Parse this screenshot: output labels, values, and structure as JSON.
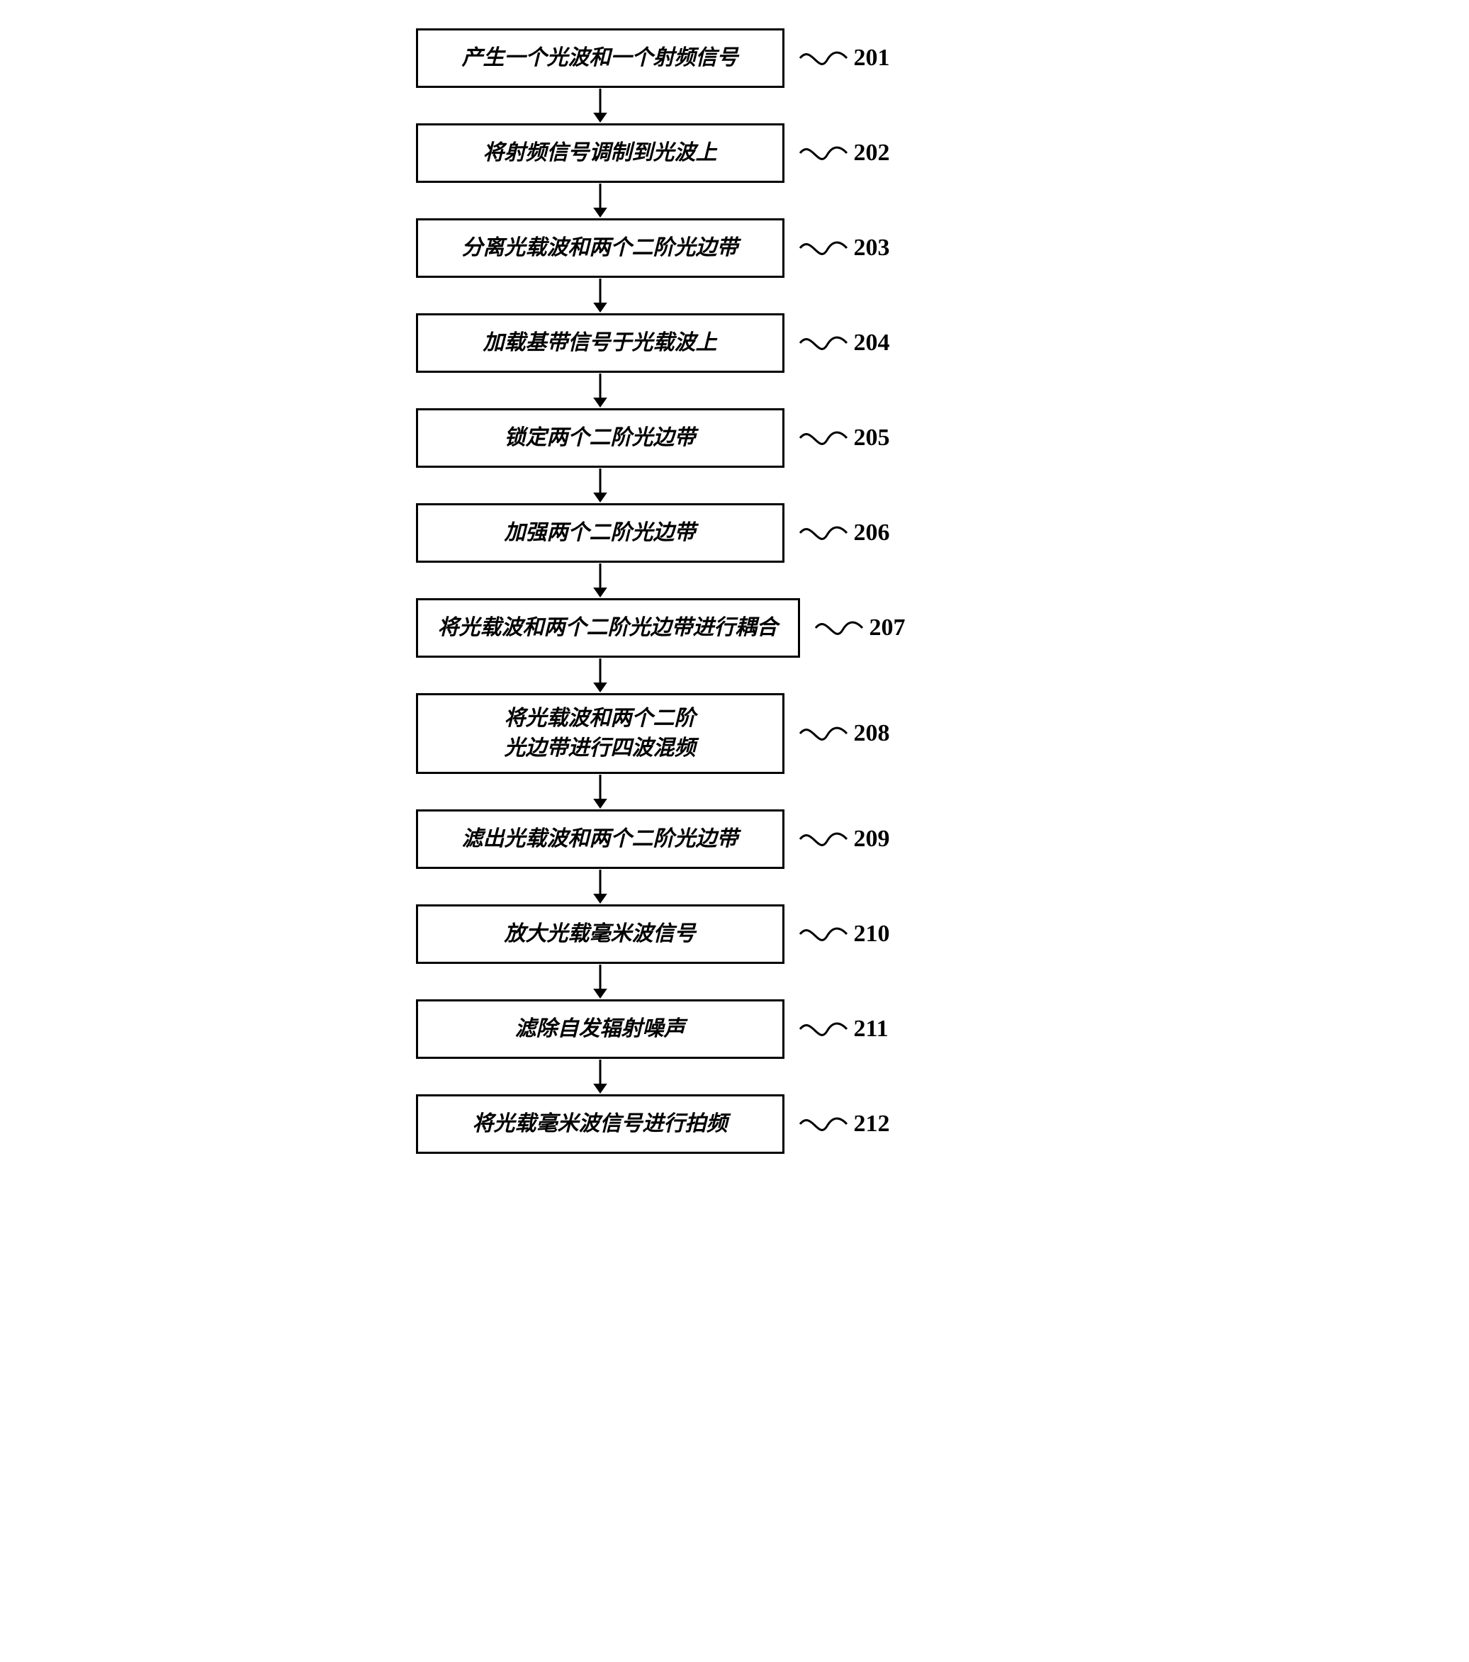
{
  "flowchart": {
    "background_color": "#ffffff",
    "box_border_color": "#000000",
    "box_border_width": 3,
    "text_color": "#000000",
    "box_font_size": 30,
    "label_font_size": 34,
    "font_family": "SimSun, serif",
    "font_style": "italic",
    "font_weight": "bold",
    "arrow_color": "#000000",
    "arrow_stroke_width": 3,
    "arrow_head_size": 14,
    "curve_stroke_width": 3,
    "box_min_width": 520,
    "arrow_height": 48,
    "steps": [
      {
        "number": "201",
        "text": "产生一个光波和一个射频信号",
        "lines": 1
      },
      {
        "number": "202",
        "text": "将射频信号调制到光波上",
        "lines": 1
      },
      {
        "number": "203",
        "text": "分离光载波和两个二阶光边带",
        "lines": 1
      },
      {
        "number": "204",
        "text": "加载基带信号于光载波上",
        "lines": 1
      },
      {
        "number": "205",
        "text": "锁定两个二阶光边带",
        "lines": 1
      },
      {
        "number": "206",
        "text": "加强两个二阶光边带",
        "lines": 1
      },
      {
        "number": "207",
        "text": "将光载波和两个二阶光边带进行耦合",
        "lines": 1
      },
      {
        "number": "208",
        "text": "将光载波和两个二阶\n光边带进行四波混频",
        "lines": 2
      },
      {
        "number": "209",
        "text": "滤出光载波和两个二阶光边带",
        "lines": 1
      },
      {
        "number": "210",
        "text": "放大光载毫米波信号",
        "lines": 1
      },
      {
        "number": "211",
        "text": "滤除自发辐射噪声",
        "lines": 1
      },
      {
        "number": "212",
        "text": "将光载毫米波信号进行拍频",
        "lines": 1
      }
    ]
  }
}
